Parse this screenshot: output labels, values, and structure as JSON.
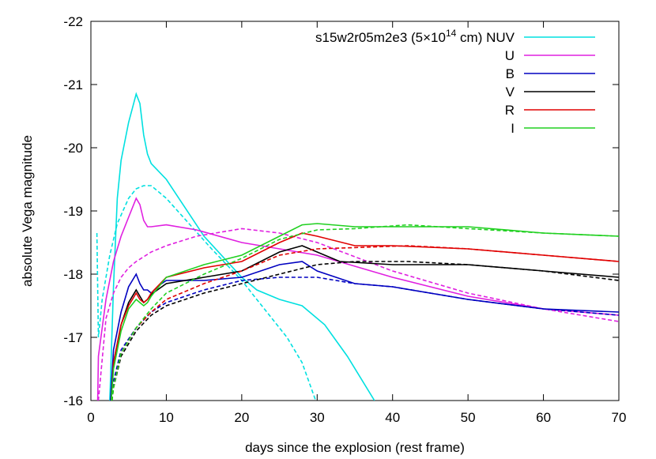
{
  "chart_data": {
    "type": "line",
    "xlabel": "days since the explosion (rest frame)",
    "ylabel": "absolute Vega magnitude",
    "xlim": [
      0,
      70
    ],
    "ylim": [
      -16,
      -22
    ],
    "y_inverted": true,
    "grid": false,
    "legend_position": "top-right",
    "xticks": [
      "0",
      "10",
      "20",
      "30",
      "40",
      "50",
      "60",
      "70"
    ],
    "yticks": [
      "-16",
      "-17",
      "-18",
      "-19",
      "-20",
      "-21",
      "-22"
    ],
    "legend_model_prefix": "s15w2r05m2e3 (5×10",
    "legend_model_exp": "14",
    "legend_model_suffix": " cm)",
    "series": [
      {
        "name": "NUV",
        "color": "#00e0e0",
        "solid": [
          [
            2.5,
            -16.0
          ],
          [
            3.0,
            -17.8
          ],
          [
            3.5,
            -19.2
          ],
          [
            4.0,
            -19.8
          ],
          [
            5.0,
            -20.4
          ],
          [
            6.0,
            -20.85
          ],
          [
            6.5,
            -20.7
          ],
          [
            7.0,
            -20.2
          ],
          [
            7.5,
            -19.9
          ],
          [
            8.0,
            -19.75
          ],
          [
            10.0,
            -19.5
          ],
          [
            15.0,
            -18.6
          ],
          [
            20.0,
            -17.95
          ],
          [
            22.0,
            -17.75
          ],
          [
            25.0,
            -17.6
          ],
          [
            28.0,
            -17.5
          ],
          [
            31.0,
            -17.2
          ],
          [
            34.0,
            -16.7
          ],
          [
            37.6,
            -16.0
          ]
        ],
        "dashed": [
          [
            0.8,
            -18.65
          ],
          [
            1.0,
            -17.0
          ],
          [
            1.5,
            -17.6
          ],
          [
            2.5,
            -18.3
          ],
          [
            3.5,
            -18.8
          ],
          [
            5.0,
            -19.2
          ],
          [
            6.0,
            -19.35
          ],
          [
            7.0,
            -19.4
          ],
          [
            8.0,
            -19.4
          ],
          [
            10.0,
            -19.2
          ],
          [
            13.0,
            -18.8
          ],
          [
            16.0,
            -18.4
          ],
          [
            20.0,
            -17.9
          ],
          [
            22.0,
            -17.6
          ],
          [
            24.0,
            -17.3
          ],
          [
            26.0,
            -17.0
          ],
          [
            28.0,
            -16.6
          ],
          [
            29.8,
            -16.0
          ]
        ]
      },
      {
        "name": "U",
        "color": "#e020e0",
        "solid": [
          [
            0.9,
            -16.0
          ],
          [
            1.0,
            -16.7
          ],
          [
            2.0,
            -17.6
          ],
          [
            3.0,
            -18.2
          ],
          [
            4.0,
            -18.6
          ],
          [
            5.0,
            -18.9
          ],
          [
            6.0,
            -19.2
          ],
          [
            6.5,
            -19.1
          ],
          [
            7.0,
            -18.85
          ],
          [
            7.5,
            -18.75
          ],
          [
            8.0,
            -18.75
          ],
          [
            10.0,
            -18.78
          ],
          [
            14.0,
            -18.7
          ],
          [
            20.0,
            -18.5
          ],
          [
            25.0,
            -18.4
          ],
          [
            30.0,
            -18.3
          ],
          [
            40.0,
            -17.95
          ],
          [
            50.0,
            -17.65
          ],
          [
            60.0,
            -17.45
          ],
          [
            70.0,
            -17.35
          ]
        ],
        "dashed": [
          [
            1.0,
            -16.0
          ],
          [
            2.0,
            -17.3
          ],
          [
            3.0,
            -17.7
          ],
          [
            4.0,
            -17.95
          ],
          [
            5.0,
            -18.1
          ],
          [
            6.0,
            -18.2
          ],
          [
            8.0,
            -18.35
          ],
          [
            10.0,
            -18.45
          ],
          [
            14.0,
            -18.6
          ],
          [
            20.0,
            -18.72
          ],
          [
            25.0,
            -18.65
          ],
          [
            30.0,
            -18.5
          ],
          [
            40.0,
            -18.05
          ],
          [
            50.0,
            -17.7
          ],
          [
            60.0,
            -17.45
          ],
          [
            70.0,
            -17.25
          ]
        ]
      },
      {
        "name": "B",
        "color": "#0000c0",
        "solid": [
          [
            2.6,
            -16.0
          ],
          [
            3.0,
            -16.8
          ],
          [
            4.0,
            -17.4
          ],
          [
            5.0,
            -17.8
          ],
          [
            6.0,
            -18.0
          ],
          [
            6.5,
            -17.85
          ],
          [
            7.0,
            -17.75
          ],
          [
            7.5,
            -17.75
          ],
          [
            8.0,
            -17.7
          ],
          [
            9.0,
            -17.82
          ],
          [
            10.0,
            -17.9
          ],
          [
            15.0,
            -17.9
          ],
          [
            20.0,
            -17.95
          ],
          [
            25.0,
            -18.15
          ],
          [
            28.0,
            -18.2
          ],
          [
            30.0,
            -18.05
          ],
          [
            35.0,
            -17.85
          ],
          [
            40.0,
            -17.8
          ],
          [
            50.0,
            -17.6
          ],
          [
            60.0,
            -17.45
          ],
          [
            70.0,
            -17.4
          ]
        ],
        "dashed": [
          [
            2.7,
            -16.0
          ],
          [
            3.0,
            -16.3
          ],
          [
            4.0,
            -16.8
          ],
          [
            6.0,
            -17.15
          ],
          [
            8.0,
            -17.4
          ],
          [
            10.0,
            -17.55
          ],
          [
            15.0,
            -17.75
          ],
          [
            20.0,
            -17.9
          ],
          [
            25.0,
            -17.95
          ],
          [
            30.0,
            -17.95
          ],
          [
            35.0,
            -17.85
          ],
          [
            40.0,
            -17.8
          ],
          [
            50.0,
            -17.6
          ],
          [
            60.0,
            -17.45
          ],
          [
            70.0,
            -17.35
          ]
        ]
      },
      {
        "name": "V",
        "color": "#000000",
        "solid": [
          [
            2.7,
            -16.0
          ],
          [
            3.0,
            -16.6
          ],
          [
            4.0,
            -17.2
          ],
          [
            5.0,
            -17.55
          ],
          [
            6.0,
            -17.75
          ],
          [
            6.5,
            -17.65
          ],
          [
            7.0,
            -17.55
          ],
          [
            7.5,
            -17.6
          ],
          [
            8.0,
            -17.68
          ],
          [
            10.0,
            -17.85
          ],
          [
            15.0,
            -17.95
          ],
          [
            20.0,
            -18.05
          ],
          [
            25.0,
            -18.35
          ],
          [
            28.0,
            -18.45
          ],
          [
            30.0,
            -18.35
          ],
          [
            33.0,
            -18.2
          ],
          [
            40.0,
            -18.15
          ],
          [
            50.0,
            -18.15
          ],
          [
            60.0,
            -18.05
          ],
          [
            70.0,
            -17.95
          ]
        ],
        "dashed": [
          [
            2.8,
            -16.0
          ],
          [
            3.0,
            -16.2
          ],
          [
            4.0,
            -16.7
          ],
          [
            6.0,
            -17.1
          ],
          [
            8.0,
            -17.35
          ],
          [
            10.0,
            -17.5
          ],
          [
            15.0,
            -17.7
          ],
          [
            20.0,
            -17.85
          ],
          [
            25.0,
            -18.0
          ],
          [
            30.0,
            -18.15
          ],
          [
            35.0,
            -18.2
          ],
          [
            42.0,
            -18.2
          ],
          [
            50.0,
            -18.15
          ],
          [
            60.0,
            -18.05
          ],
          [
            70.0,
            -17.9
          ]
        ]
      },
      {
        "name": "R",
        "color": "#e00000",
        "solid": [
          [
            2.7,
            -16.0
          ],
          [
            3.0,
            -16.6
          ],
          [
            4.0,
            -17.2
          ],
          [
            5.0,
            -17.5
          ],
          [
            6.0,
            -17.7
          ],
          [
            6.5,
            -17.6
          ],
          [
            7.0,
            -17.55
          ],
          [
            7.5,
            -17.6
          ],
          [
            8.0,
            -17.7
          ],
          [
            10.0,
            -17.95
          ],
          [
            15.0,
            -18.1
          ],
          [
            20.0,
            -18.2
          ],
          [
            25.0,
            -18.5
          ],
          [
            28.0,
            -18.65
          ],
          [
            30.0,
            -18.6
          ],
          [
            35.0,
            -18.45
          ],
          [
            40.0,
            -18.45
          ],
          [
            50.0,
            -18.4
          ],
          [
            60.0,
            -18.3
          ],
          [
            70.0,
            -18.2
          ]
        ],
        "dashed": [
          [
            2.8,
            -16.0
          ],
          [
            3.0,
            -16.2
          ],
          [
            4.0,
            -16.75
          ],
          [
            6.0,
            -17.15
          ],
          [
            8.0,
            -17.4
          ],
          [
            10.0,
            -17.6
          ],
          [
            15.0,
            -17.85
          ],
          [
            20.0,
            -18.05
          ],
          [
            25.0,
            -18.3
          ],
          [
            30.0,
            -18.4
          ],
          [
            35.0,
            -18.42
          ],
          [
            42.0,
            -18.45
          ],
          [
            50.0,
            -18.4
          ],
          [
            60.0,
            -18.3
          ],
          [
            70.0,
            -18.2
          ]
        ]
      },
      {
        "name": "I",
        "color": "#20d020",
        "solid": [
          [
            2.7,
            -16.0
          ],
          [
            3.0,
            -16.5
          ],
          [
            4.0,
            -17.1
          ],
          [
            5.0,
            -17.45
          ],
          [
            6.0,
            -17.6
          ],
          [
            6.5,
            -17.55
          ],
          [
            7.0,
            -17.5
          ],
          [
            7.5,
            -17.55
          ],
          [
            8.0,
            -17.65
          ],
          [
            10.0,
            -17.95
          ],
          [
            15.0,
            -18.15
          ],
          [
            20.0,
            -18.3
          ],
          [
            25.0,
            -18.6
          ],
          [
            28.0,
            -18.78
          ],
          [
            30.0,
            -18.8
          ],
          [
            35.0,
            -18.75
          ],
          [
            40.0,
            -18.75
          ],
          [
            50.0,
            -18.75
          ],
          [
            60.0,
            -18.65
          ],
          [
            70.0,
            -18.6
          ]
        ],
        "dashed": [
          [
            2.8,
            -16.0
          ],
          [
            3.0,
            -16.2
          ],
          [
            4.0,
            -16.75
          ],
          [
            6.0,
            -17.15
          ],
          [
            8.0,
            -17.45
          ],
          [
            10.0,
            -17.7
          ],
          [
            15.0,
            -18.0
          ],
          [
            20.0,
            -18.25
          ],
          [
            25.0,
            -18.55
          ],
          [
            30.0,
            -18.7
          ],
          [
            35.0,
            -18.72
          ],
          [
            42.0,
            -18.78
          ],
          [
            50.0,
            -18.72
          ],
          [
            60.0,
            -18.65
          ],
          [
            70.0,
            -18.6
          ]
        ]
      }
    ]
  }
}
